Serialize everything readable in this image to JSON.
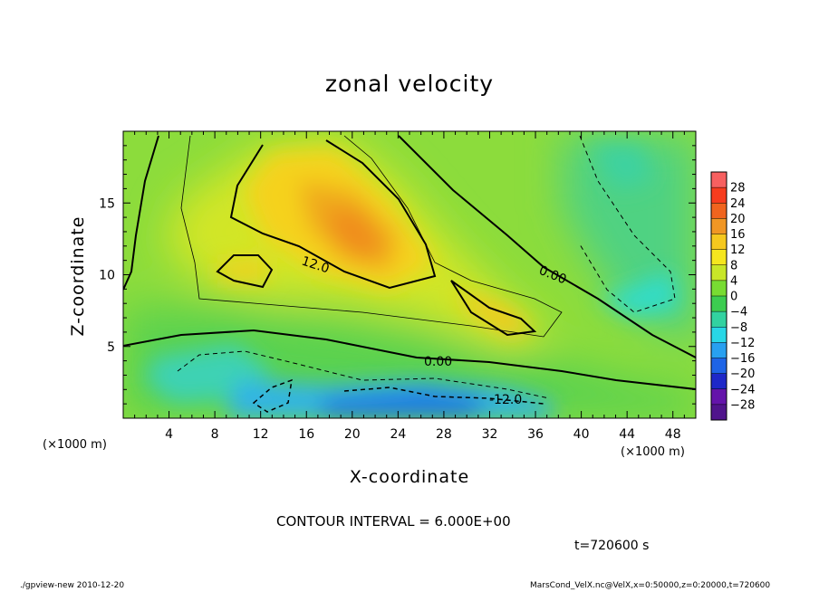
{
  "chart_data": {
    "type": "heatmap",
    "title": "zonal velocity",
    "xlabel": "X-coordinate",
    "ylabel": "Z-coordinate",
    "x_unit": "(×1000 m)",
    "xlim": [
      0,
      50
    ],
    "ylim": [
      0,
      20
    ],
    "x_ticks": [
      4,
      8,
      12,
      16,
      20,
      24,
      28,
      32,
      36,
      40,
      44,
      48
    ],
    "y_ticks": [
      5,
      10,
      15
    ],
    "colorbar": {
      "levels": [
        28,
        24,
        20,
        16,
        12,
        8,
        4,
        0,
        -4,
        -8,
        -12,
        -16,
        -20,
        -24,
        -28
      ],
      "colors": [
        "#f76060",
        "#f73c1e",
        "#f0641e",
        "#f09624",
        "#f5c81e",
        "#f5e61e",
        "#c8e628",
        "#78dc32",
        "#3ccd50",
        "#32d2a0",
        "#28d7e6",
        "#28a0f0",
        "#1e64e6",
        "#1e28c8",
        "#6414aa",
        "#50148c"
      ]
    },
    "contour_labels": [
      "12.0",
      "0.00",
      "0.00",
      "-12.0"
    ],
    "contour_interval": "CONTOUR INTERVAL = 6.000E+00",
    "time": "t=720600 s",
    "footer_left": "./gpview-new  2010-12-20",
    "footer_right": "MarsCond_VelX.nc@VelX,x=0:50000,z=0:20000,t=720600",
    "features": [
      {
        "x": 20,
        "z": 14,
        "value": 16
      },
      {
        "x": 22,
        "z": 12.5,
        "value": 18
      },
      {
        "x": 34,
        "z": 7,
        "value": 13
      },
      {
        "x": 11,
        "z": 10.5,
        "value": 12
      },
      {
        "x": 23,
        "z": 1,
        "value": -16
      },
      {
        "x": 15,
        "z": 1.5,
        "value": -12
      },
      {
        "x": 6,
        "z": 3.5,
        "value": -6
      },
      {
        "x": 45,
        "z": 9.5,
        "value": -8
      },
      {
        "x": 45,
        "z": 16,
        "value": -4
      },
      {
        "x": 2,
        "z": 3,
        "value": 2
      },
      {
        "x": 40,
        "z": 1.5,
        "value": 2
      }
    ]
  }
}
